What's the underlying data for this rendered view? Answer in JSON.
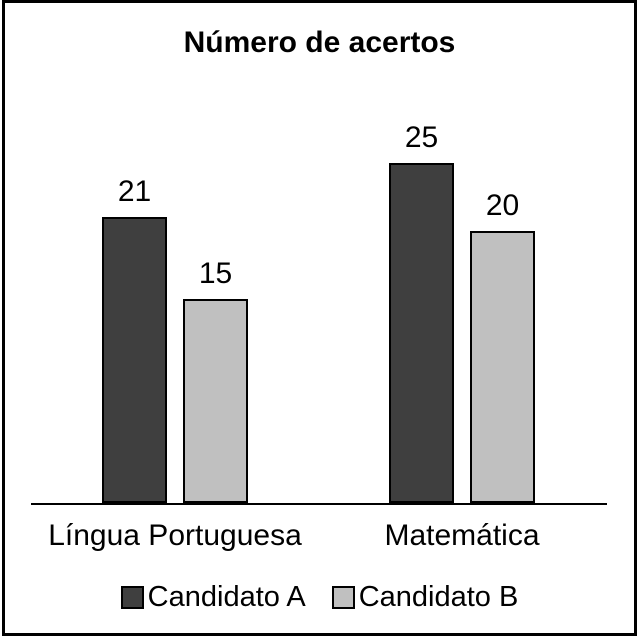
{
  "frame": {
    "border_color": "#000000",
    "background": "#ffffff"
  },
  "chart_data": {
    "type": "bar",
    "title": "Número de acertos",
    "categories": [
      "Língua Portuguesa",
      "Matemática"
    ],
    "series": [
      {
        "name": "Candidato A",
        "color": "#3f3f3f",
        "values": [
          21,
          25
        ]
      },
      {
        "name": "Candidato B",
        "color": "#c0c0c0",
        "values": [
          15,
          20
        ]
      }
    ],
    "xlabel": "",
    "ylabel": "",
    "ylim": [
      0,
      27
    ],
    "grid": false,
    "y_axis_visible": false,
    "x_axis_line_visible": true,
    "bar_outline_color": "#000000",
    "value_labels_shown": true,
    "legend_position": "bottom"
  }
}
